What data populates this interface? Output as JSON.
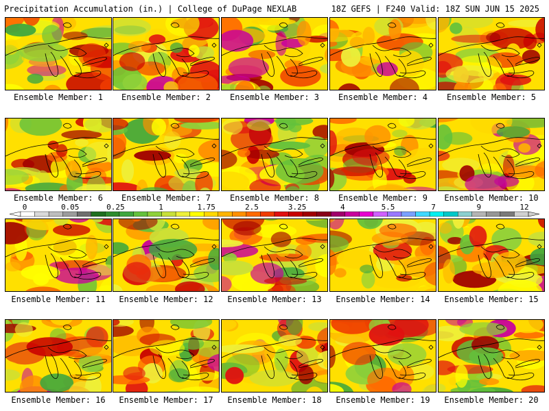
{
  "header": {
    "left": "Precipitation Accumulation (in.) | College of DuPage NEXLAB",
    "right": "18Z GEFS | F240 Valid: 18Z SUN JUN 15 2025"
  },
  "panels": [
    {
      "label": "Ensemble Member: 1"
    },
    {
      "label": "Ensemble Member: 2"
    },
    {
      "label": "Ensemble Member: 3"
    },
    {
      "label": "Ensemble Member: 4"
    },
    {
      "label": "Ensemble Member: 5"
    },
    {
      "label": "Ensemble Member: 6"
    },
    {
      "label": "Ensemble Member: 7"
    },
    {
      "label": "Ensemble Member: 8"
    },
    {
      "label": "Ensemble Member: 9"
    },
    {
      "label": "Ensemble Member: 10"
    },
    {
      "label": "Ensemble Member: 11"
    },
    {
      "label": "Ensemble Member: 12"
    },
    {
      "label": "Ensemble Member: 13"
    },
    {
      "label": "Ensemble Member: 14"
    },
    {
      "label": "Ensemble Member: 15"
    },
    {
      "label": "Ensemble Member: 16"
    },
    {
      "label": "Ensemble Member: 17"
    },
    {
      "label": "Ensemble Member: 18"
    },
    {
      "label": "Ensemble Member: 19"
    },
    {
      "label": "Ensemble Member: 20"
    }
  ],
  "colorbar": {
    "labels": [
      "0",
      "0.05",
      "0.25",
      "1",
      "1.75",
      "2.5",
      "3.25",
      "4",
      "5.5",
      "7",
      "9",
      "12"
    ],
    "colors": [
      "#ffffff",
      "#d9d9d9",
      "#bdbdbd",
      "#9c9c9c",
      "#6e6e6e",
      "#1f6e1f",
      "#2e8b2e",
      "#3ea63e",
      "#63c13c",
      "#8fd13a",
      "#c8e03a",
      "#eef03a",
      "#ffff00",
      "#ffd800",
      "#ffb400",
      "#ff9000",
      "#ff6a00",
      "#f03c00",
      "#e01010",
      "#c80000",
      "#a00000",
      "#880018",
      "#a0006a",
      "#c8009c",
      "#e600d0",
      "#d060ff",
      "#9a78ff",
      "#7aa0ff",
      "#40d8ff",
      "#00f0f0",
      "#00c8c8",
      "#8ccfcf",
      "#b4b4b4",
      "#969696",
      "#7a7a7a",
      "#d0d0d0"
    ]
  }
}
